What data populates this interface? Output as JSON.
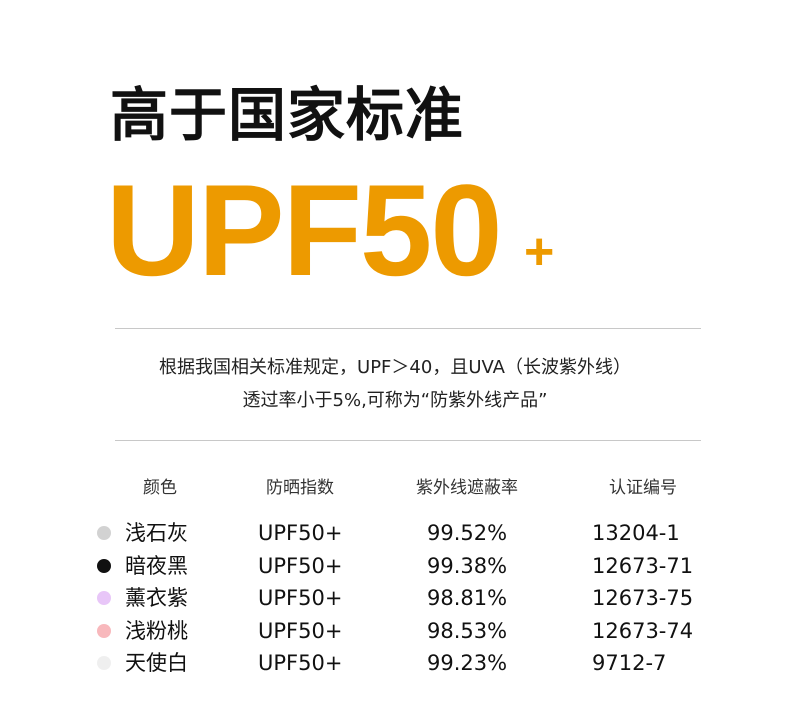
{
  "title": "高于国家标准",
  "headline": {
    "main": "UPF50",
    "suffix": "+",
    "color": "#ED9A00"
  },
  "description": [
    "根据我国相关标准规定，UPF＞40，且UVA（长波紫外线）",
    "透过率小于5%,可称为“防紫外线产品”"
  ],
  "table": {
    "headers": [
      "颜色",
      "防晒指数",
      "紫外线遮蔽率",
      "认证编号"
    ],
    "rows": [
      {
        "color": "浅石灰",
        "swatch": "#d2d2d2",
        "upf": "UPF50+",
        "rate": "99.52%",
        "cert": "13204-1"
      },
      {
        "color": "暗夜黑",
        "swatch": "#111111",
        "upf": "UPF50+",
        "rate": "99.38%",
        "cert": "12673-71"
      },
      {
        "color": "薰衣紫",
        "swatch": "#e8c6f8",
        "upf": "UPF50+",
        "rate": "98.81%",
        "cert": "12673-75"
      },
      {
        "color": "浅粉桃",
        "swatch": "#f8b8bc",
        "upf": "UPF50+",
        "rate": "98.53%",
        "cert": "12673-74"
      },
      {
        "color": "天使白",
        "swatch": "#efefef",
        "upf": "UPF50+",
        "rate": "99.23%",
        "cert": "9712-7"
      }
    ]
  }
}
